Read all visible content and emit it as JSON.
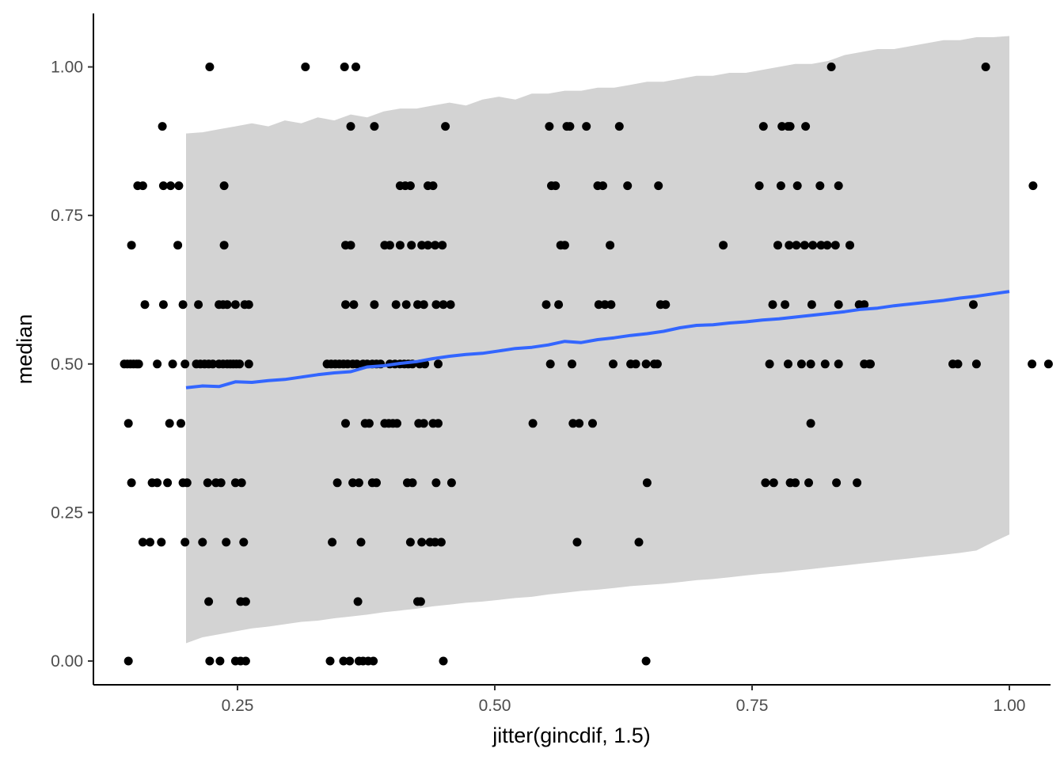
{
  "chart_data": {
    "type": "scatter",
    "title": "",
    "xlabel": "jitter(gincdif, 1.5)",
    "ylabel": "median",
    "xlim": [
      0.11,
      1.04
    ],
    "ylim": [
      -0.04,
      1.09
    ],
    "grid": false,
    "x_ticks": [
      0.25,
      0.5,
      0.75,
      1.0
    ],
    "x_tick_labels": [
      "0.25",
      "0.50",
      "0.75",
      "1.00"
    ],
    "y_ticks": [
      0.0,
      0.25,
      0.5,
      0.75,
      1.0
    ],
    "y_tick_labels": [
      "0.00",
      "0.25",
      "0.50",
      "0.75",
      "1.00"
    ],
    "colors": {
      "points": "#000000",
      "trend": "#3366ff",
      "band": "#d3d3d3"
    },
    "points": [
      [
        0.144,
        0.0
      ],
      [
        0.223,
        0.0
      ],
      [
        0.233,
        0.0
      ],
      [
        0.248,
        0.0
      ],
      [
        0.253,
        0.0
      ],
      [
        0.258,
        0.0
      ],
      [
        0.34,
        0.0
      ],
      [
        0.353,
        0.0
      ],
      [
        0.359,
        0.0
      ],
      [
        0.368,
        0.0
      ],
      [
        0.372,
        0.0
      ],
      [
        0.377,
        0.0
      ],
      [
        0.382,
        0.0
      ],
      [
        0.45,
        0.0
      ],
      [
        0.647,
        0.0
      ],
      [
        0.222,
        0.1
      ],
      [
        0.253,
        0.1
      ],
      [
        0.258,
        0.1
      ],
      [
        0.367,
        0.1
      ],
      [
        0.425,
        0.1
      ],
      [
        0.428,
        0.1
      ],
      [
        0.158,
        0.2
      ],
      [
        0.165,
        0.2
      ],
      [
        0.176,
        0.2
      ],
      [
        0.199,
        0.2
      ],
      [
        0.216,
        0.2
      ],
      [
        0.239,
        0.2
      ],
      [
        0.256,
        0.2
      ],
      [
        0.342,
        0.2
      ],
      [
        0.37,
        0.2
      ],
      [
        0.418,
        0.2
      ],
      [
        0.429,
        0.2
      ],
      [
        0.437,
        0.2
      ],
      [
        0.442,
        0.2
      ],
      [
        0.448,
        0.2
      ],
      [
        0.58,
        0.2
      ],
      [
        0.64,
        0.2
      ],
      [
        0.147,
        0.3
      ],
      [
        0.167,
        0.3
      ],
      [
        0.172,
        0.3
      ],
      [
        0.182,
        0.3
      ],
      [
        0.197,
        0.3
      ],
      [
        0.201,
        0.3
      ],
      [
        0.221,
        0.3
      ],
      [
        0.229,
        0.3
      ],
      [
        0.234,
        0.3
      ],
      [
        0.248,
        0.3
      ],
      [
        0.254,
        0.3
      ],
      [
        0.347,
        0.3
      ],
      [
        0.362,
        0.3
      ],
      [
        0.368,
        0.3
      ],
      [
        0.381,
        0.3
      ],
      [
        0.385,
        0.3
      ],
      [
        0.415,
        0.3
      ],
      [
        0.42,
        0.3
      ],
      [
        0.443,
        0.3
      ],
      [
        0.458,
        0.3
      ],
      [
        0.648,
        0.3
      ],
      [
        0.763,
        0.3
      ],
      [
        0.771,
        0.3
      ],
      [
        0.787,
        0.3
      ],
      [
        0.792,
        0.3
      ],
      [
        0.805,
        0.3
      ],
      [
        0.832,
        0.3
      ],
      [
        0.852,
        0.3
      ],
      [
        0.144,
        0.4
      ],
      [
        0.184,
        0.4
      ],
      [
        0.195,
        0.4
      ],
      [
        0.355,
        0.4
      ],
      [
        0.374,
        0.4
      ],
      [
        0.378,
        0.4
      ],
      [
        0.393,
        0.4
      ],
      [
        0.397,
        0.4
      ],
      [
        0.401,
        0.4
      ],
      [
        0.405,
        0.4
      ],
      [
        0.426,
        0.4
      ],
      [
        0.431,
        0.4
      ],
      [
        0.44,
        0.4
      ],
      [
        0.445,
        0.4
      ],
      [
        0.537,
        0.4
      ],
      [
        0.576,
        0.4
      ],
      [
        0.582,
        0.4
      ],
      [
        0.595,
        0.4
      ],
      [
        0.807,
        0.4
      ],
      [
        0.14,
        0.5
      ],
      [
        0.143,
        0.5
      ],
      [
        0.146,
        0.5
      ],
      [
        0.149,
        0.5
      ],
      [
        0.152,
        0.5
      ],
      [
        0.154,
        0.5
      ],
      [
        0.172,
        0.5
      ],
      [
        0.187,
        0.5
      ],
      [
        0.199,
        0.5
      ],
      [
        0.21,
        0.5
      ],
      [
        0.214,
        0.5
      ],
      [
        0.218,
        0.5
      ],
      [
        0.222,
        0.5
      ],
      [
        0.226,
        0.5
      ],
      [
        0.232,
        0.5
      ],
      [
        0.236,
        0.5
      ],
      [
        0.24,
        0.5
      ],
      [
        0.243,
        0.5
      ],
      [
        0.246,
        0.5
      ],
      [
        0.249,
        0.5
      ],
      [
        0.252,
        0.5
      ],
      [
        0.261,
        0.5
      ],
      [
        0.337,
        0.5
      ],
      [
        0.341,
        0.5
      ],
      [
        0.345,
        0.5
      ],
      [
        0.349,
        0.5
      ],
      [
        0.353,
        0.5
      ],
      [
        0.357,
        0.5
      ],
      [
        0.362,
        0.5
      ],
      [
        0.366,
        0.5
      ],
      [
        0.372,
        0.5
      ],
      [
        0.376,
        0.5
      ],
      [
        0.381,
        0.5
      ],
      [
        0.385,
        0.5
      ],
      [
        0.389,
        0.5
      ],
      [
        0.398,
        0.5
      ],
      [
        0.403,
        0.5
      ],
      [
        0.408,
        0.5
      ],
      [
        0.412,
        0.5
      ],
      [
        0.416,
        0.5
      ],
      [
        0.42,
        0.5
      ],
      [
        0.427,
        0.5
      ],
      [
        0.432,
        0.5
      ],
      [
        0.445,
        0.5
      ],
      [
        0.554,
        0.5
      ],
      [
        0.575,
        0.5
      ],
      [
        0.615,
        0.5
      ],
      [
        0.632,
        0.5
      ],
      [
        0.637,
        0.5
      ],
      [
        0.647,
        0.5
      ],
      [
        0.655,
        0.5
      ],
      [
        0.658,
        0.5
      ],
      [
        0.767,
        0.5
      ],
      [
        0.785,
        0.5
      ],
      [
        0.798,
        0.5
      ],
      [
        0.807,
        0.5
      ],
      [
        0.821,
        0.5
      ],
      [
        0.834,
        0.5
      ],
      [
        0.859,
        0.5
      ],
      [
        0.864,
        0.5
      ],
      [
        0.865,
        0.5
      ],
      [
        0.945,
        0.5
      ],
      [
        0.95,
        0.5
      ],
      [
        0.968,
        0.5
      ],
      [
        1.022,
        0.5
      ],
      [
        1.038,
        0.5
      ],
      [
        0.16,
        0.6
      ],
      [
        0.178,
        0.6
      ],
      [
        0.197,
        0.6
      ],
      [
        0.212,
        0.6
      ],
      [
        0.232,
        0.6
      ],
      [
        0.236,
        0.6
      ],
      [
        0.24,
        0.6
      ],
      [
        0.248,
        0.6
      ],
      [
        0.257,
        0.6
      ],
      [
        0.261,
        0.6
      ],
      [
        0.355,
        0.6
      ],
      [
        0.363,
        0.6
      ],
      [
        0.383,
        0.6
      ],
      [
        0.404,
        0.6
      ],
      [
        0.414,
        0.6
      ],
      [
        0.425,
        0.6
      ],
      [
        0.431,
        0.6
      ],
      [
        0.443,
        0.6
      ],
      [
        0.45,
        0.6
      ],
      [
        0.457,
        0.6
      ],
      [
        0.55,
        0.6
      ],
      [
        0.562,
        0.6
      ],
      [
        0.601,
        0.6
      ],
      [
        0.607,
        0.6
      ],
      [
        0.613,
        0.6
      ],
      [
        0.661,
        0.6
      ],
      [
        0.666,
        0.6
      ],
      [
        0.77,
        0.6
      ],
      [
        0.782,
        0.6
      ],
      [
        0.808,
        0.6
      ],
      [
        0.834,
        0.6
      ],
      [
        0.854,
        0.6
      ],
      [
        0.859,
        0.6
      ],
      [
        0.965,
        0.6
      ],
      [
        0.147,
        0.7
      ],
      [
        0.192,
        0.7
      ],
      [
        0.237,
        0.7
      ],
      [
        0.355,
        0.7
      ],
      [
        0.36,
        0.7
      ],
      [
        0.393,
        0.7
      ],
      [
        0.398,
        0.7
      ],
      [
        0.408,
        0.7
      ],
      [
        0.419,
        0.7
      ],
      [
        0.429,
        0.7
      ],
      [
        0.435,
        0.7
      ],
      [
        0.442,
        0.7
      ],
      [
        0.449,
        0.7
      ],
      [
        0.564,
        0.7
      ],
      [
        0.568,
        0.7
      ],
      [
        0.612,
        0.7
      ],
      [
        0.722,
        0.7
      ],
      [
        0.775,
        0.7
      ],
      [
        0.786,
        0.7
      ],
      [
        0.793,
        0.7
      ],
      [
        0.801,
        0.7
      ],
      [
        0.809,
        0.7
      ],
      [
        0.817,
        0.7
      ],
      [
        0.823,
        0.7
      ],
      [
        0.831,
        0.7
      ],
      [
        0.845,
        0.7
      ],
      [
        0.153,
        0.8
      ],
      [
        0.158,
        0.8
      ],
      [
        0.178,
        0.8
      ],
      [
        0.185,
        0.8
      ],
      [
        0.193,
        0.8
      ],
      [
        0.237,
        0.8
      ],
      [
        0.408,
        0.8
      ],
      [
        0.413,
        0.8
      ],
      [
        0.418,
        0.8
      ],
      [
        0.435,
        0.8
      ],
      [
        0.44,
        0.8
      ],
      [
        0.555,
        0.8
      ],
      [
        0.559,
        0.8
      ],
      [
        0.6,
        0.8
      ],
      [
        0.605,
        0.8
      ],
      [
        0.629,
        0.8
      ],
      [
        0.659,
        0.8
      ],
      [
        0.757,
        0.8
      ],
      [
        0.778,
        0.8
      ],
      [
        0.794,
        0.8
      ],
      [
        0.816,
        0.8
      ],
      [
        0.834,
        0.8
      ],
      [
        1.023,
        0.8
      ],
      [
        0.177,
        0.9
      ],
      [
        0.36,
        0.9
      ],
      [
        0.383,
        0.9
      ],
      [
        0.452,
        0.9
      ],
      [
        0.553,
        0.9
      ],
      [
        0.57,
        0.9
      ],
      [
        0.573,
        0.9
      ],
      [
        0.589,
        0.9
      ],
      [
        0.621,
        0.9
      ],
      [
        0.761,
        0.9
      ],
      [
        0.779,
        0.9
      ],
      [
        0.785,
        0.9
      ],
      [
        0.787,
        0.9
      ],
      [
        0.802,
        0.9
      ],
      [
        0.223,
        1.0
      ],
      [
        0.316,
        1.0
      ],
      [
        0.354,
        1.0
      ],
      [
        0.365,
        1.0
      ],
      [
        0.827,
        1.0
      ],
      [
        0.977,
        1.0
      ]
    ],
    "smooth_line": {
      "x": [
        0.2,
        0.216,
        0.232,
        0.248,
        0.264,
        0.28,
        0.296,
        0.312,
        0.328,
        0.344,
        0.36,
        0.376,
        0.392,
        0.408,
        0.424,
        0.44,
        0.456,
        0.472,
        0.488,
        0.504,
        0.52,
        0.536,
        0.552,
        0.568,
        0.584,
        0.6,
        0.616,
        0.632,
        0.648,
        0.664,
        0.68,
        0.696,
        0.712,
        0.728,
        0.744,
        0.76,
        0.776,
        0.792,
        0.808,
        0.824,
        0.84,
        0.856,
        0.872,
        0.888,
        0.904,
        0.92,
        0.936,
        0.952,
        0.968,
        0.984,
        1.0
      ],
      "y": [
        0.46,
        0.463,
        0.462,
        0.47,
        0.469,
        0.472,
        0.474,
        0.478,
        0.482,
        0.485,
        0.487,
        0.495,
        0.497,
        0.501,
        0.504,
        0.509,
        0.513,
        0.516,
        0.518,
        0.522,
        0.526,
        0.528,
        0.532,
        0.538,
        0.536,
        0.541,
        0.544,
        0.548,
        0.551,
        0.555,
        0.561,
        0.565,
        0.566,
        0.569,
        0.571,
        0.574,
        0.576,
        0.579,
        0.582,
        0.585,
        0.588,
        0.592,
        0.594,
        0.598,
        0.601,
        0.604,
        0.607,
        0.611,
        0.614,
        0.618,
        0.622
      ]
    },
    "band": {
      "x": [
        0.2,
        0.216,
        0.232,
        0.248,
        0.264,
        0.28,
        0.296,
        0.312,
        0.328,
        0.344,
        0.36,
        0.376,
        0.392,
        0.408,
        0.424,
        0.44,
        0.456,
        0.472,
        0.488,
        0.504,
        0.52,
        0.536,
        0.552,
        0.568,
        0.584,
        0.6,
        0.616,
        0.632,
        0.648,
        0.664,
        0.68,
        0.696,
        0.712,
        0.728,
        0.744,
        0.76,
        0.776,
        0.792,
        0.808,
        0.824,
        0.84,
        0.856,
        0.872,
        0.888,
        0.904,
        0.92,
        0.936,
        0.952,
        0.968,
        0.984,
        1.0
      ],
      "upper": [
        0.888,
        0.89,
        0.895,
        0.9,
        0.905,
        0.9,
        0.91,
        0.905,
        0.915,
        0.91,
        0.92,
        0.915,
        0.925,
        0.93,
        0.93,
        0.935,
        0.94,
        0.935,
        0.945,
        0.95,
        0.945,
        0.955,
        0.955,
        0.96,
        0.96,
        0.965,
        0.965,
        0.97,
        0.975,
        0.975,
        0.98,
        0.985,
        0.985,
        0.99,
        0.99,
        0.995,
        1.0,
        1.005,
        1.005,
        1.01,
        1.02,
        1.025,
        1.03,
        1.03,
        1.035,
        1.04,
        1.045,
        1.045,
        1.05,
        1.05,
        1.052
      ],
      "lower": [
        0.03,
        0.04,
        0.045,
        0.05,
        0.055,
        0.058,
        0.062,
        0.066,
        0.068,
        0.072,
        0.075,
        0.078,
        0.082,
        0.085,
        0.088,
        0.092,
        0.095,
        0.098,
        0.1,
        0.103,
        0.106,
        0.108,
        0.112,
        0.115,
        0.118,
        0.12,
        0.123,
        0.126,
        0.128,
        0.13,
        0.133,
        0.136,
        0.138,
        0.141,
        0.144,
        0.147,
        0.149,
        0.152,
        0.155,
        0.158,
        0.161,
        0.164,
        0.167,
        0.17,
        0.173,
        0.176,
        0.179,
        0.182,
        0.186,
        0.2,
        0.213
      ]
    }
  }
}
